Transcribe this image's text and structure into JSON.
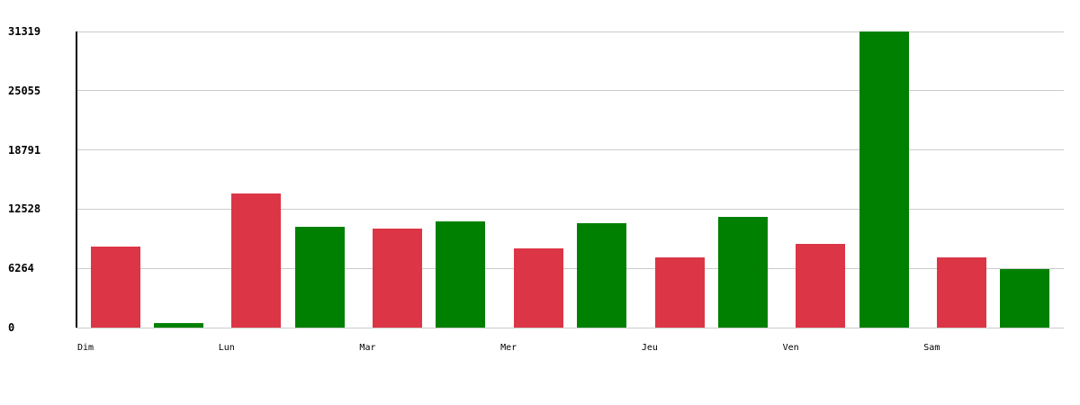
{
  "chart_data": {
    "type": "bar",
    "title": "",
    "xlabel": "",
    "ylabel": "",
    "categories": [
      "Dim",
      "Lun",
      "Mar",
      "Mer",
      "Jeu",
      "Ven",
      "Sam"
    ],
    "series": [
      {
        "name": "red-series",
        "color": "#DC3545",
        "values": [
          8570,
          14160,
          10440,
          8380,
          7430,
          8880,
          7430
        ]
      },
      {
        "name": "green-series",
        "color": "#008000",
        "values": [
          480,
          10630,
          11200,
          11070,
          11710,
          31319,
          6200
        ]
      }
    ],
    "ytick_labels": [
      "31319",
      "25055",
      "18791",
      "12528",
      "6264",
      "0"
    ],
    "ytick_values": [
      31319,
      25055,
      18791,
      12528,
      6264,
      0
    ],
    "ylim": [
      0,
      31319
    ],
    "grid": true,
    "legend_position": "none"
  },
  "colors": {
    "bar_red": "#DC3545",
    "bar_green": "#008000",
    "gridline": "#CCCCCC",
    "axis": "#000000",
    "background": "#FFFFFF",
    "text": "#000000"
  }
}
